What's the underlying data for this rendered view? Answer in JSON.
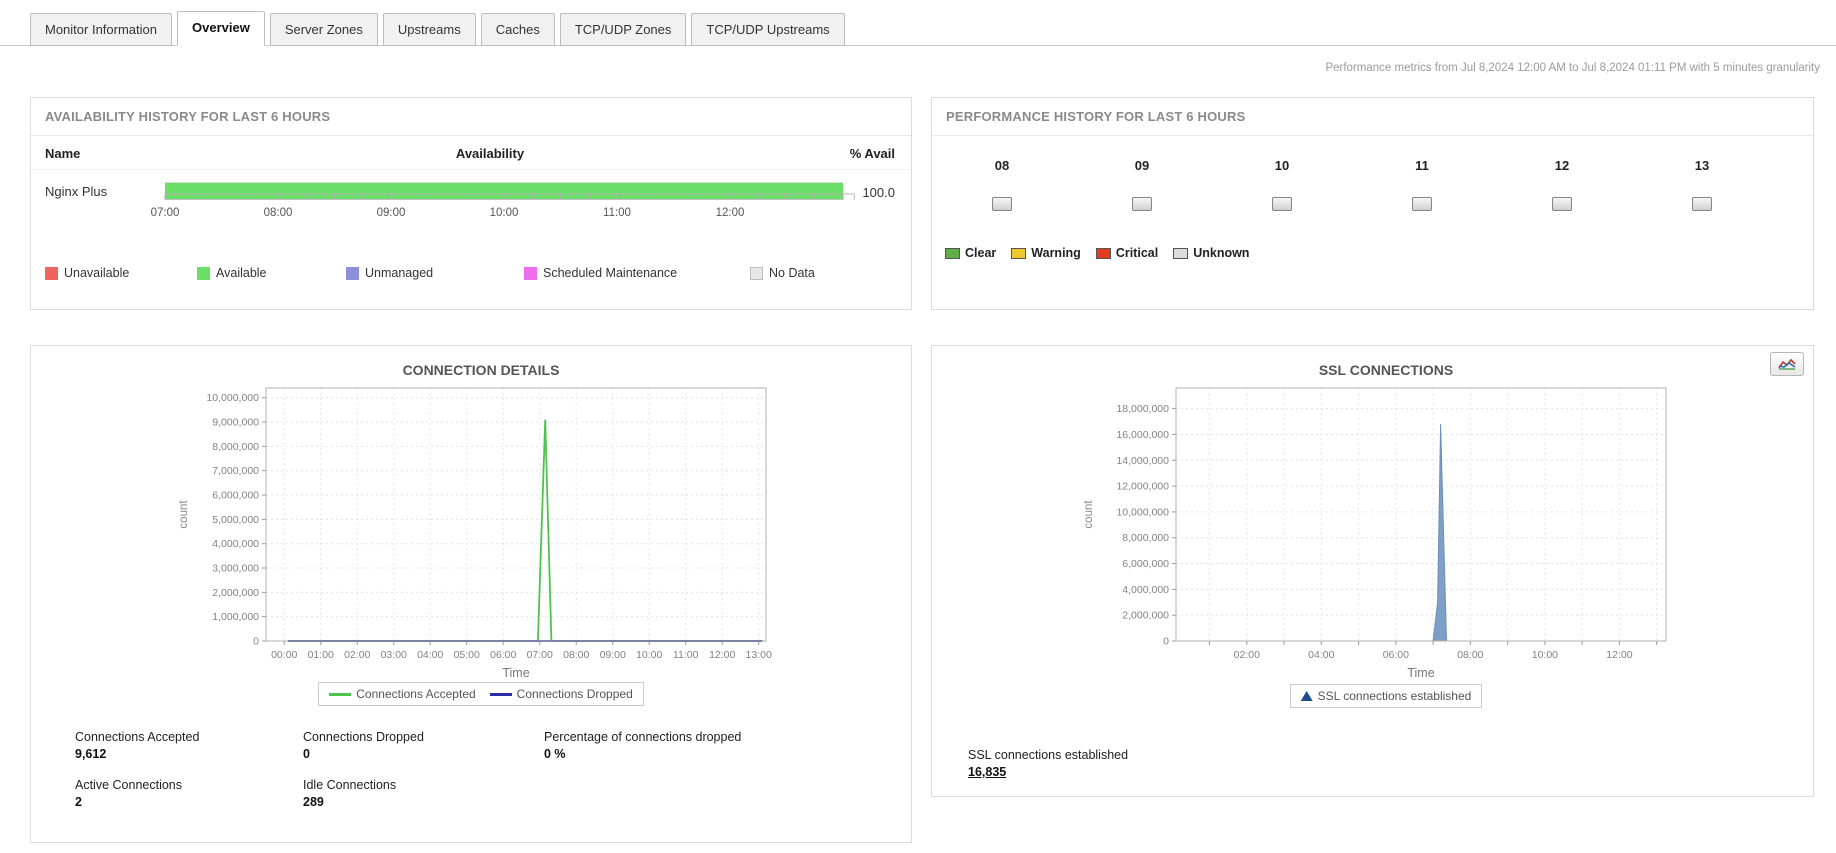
{
  "tabs": {
    "items": [
      {
        "label": "Monitor Information",
        "active": false
      },
      {
        "label": "Overview",
        "active": true
      },
      {
        "label": "Server Zones",
        "active": false
      },
      {
        "label": "Upstreams",
        "active": false
      },
      {
        "label": "Caches",
        "active": false
      },
      {
        "label": "TCP/UDP Zones",
        "active": false
      },
      {
        "label": "TCP/UDP Upstreams",
        "active": false
      }
    ]
  },
  "header": {
    "metrics_note": "Performance metrics from Jul 8,2024 12:00 AM to Jul 8,2024 01:11 PM with 5 minutes granularity"
  },
  "availability": {
    "title": "AVAILABILITY HISTORY FOR LAST 6 HOURS",
    "columns": {
      "name": "Name",
      "availability": "Availability",
      "percent": "% Avail"
    },
    "monitor": {
      "name": "Nginx Plus",
      "percent_avail": "100.0",
      "status": "available",
      "bar_color": "#6ade68"
    },
    "axis": {
      "hour_labels": [
        "07:00",
        "08:00",
        "09:00",
        "10:00",
        "11:00",
        "12:00"
      ],
      "span_hours": 6.1,
      "tick_interval_minutes": 15
    },
    "legend": [
      {
        "label": "Unavailable",
        "color": "#f0645f"
      },
      {
        "label": "Available",
        "color": "#6ade68"
      },
      {
        "label": "Unmanaged",
        "color": "#8f8fd8"
      },
      {
        "label": "Scheduled Maintenance",
        "color": "#ee6fee"
      },
      {
        "label": "No Data",
        "color": "#e7e7e7"
      }
    ]
  },
  "performance": {
    "title": "PERFORMANCE HISTORY FOR LAST 6 HOURS",
    "hours": [
      "08",
      "09",
      "10",
      "11",
      "12",
      "13"
    ],
    "hour_status": [
      "unknown",
      "unknown",
      "unknown",
      "unknown",
      "unknown",
      "unknown"
    ],
    "legend": [
      {
        "label": "Clear",
        "color": "#5fae4a"
      },
      {
        "label": "Warning",
        "color": "#eec62e"
      },
      {
        "label": "Critical",
        "color": "#e23b20"
      },
      {
        "label": "Unknown",
        "color": "#dcdcdc"
      }
    ]
  },
  "connection_details": {
    "stats": [
      {
        "label": "Connections Accepted",
        "value": "9,612"
      },
      {
        "label": "Connections Dropped",
        "value": "0"
      },
      {
        "label": "Percentage of connections dropped",
        "value": "0 %"
      },
      {
        "label": "Active Connections",
        "value": "2"
      },
      {
        "label": "Idle Connections",
        "value": "289"
      }
    ]
  },
  "ssl": {
    "stat": {
      "label": "SSL connections established",
      "value": "16,835"
    }
  },
  "chart_data": [
    {
      "type": "line",
      "title": "CONNECTION DETAILS",
      "xlabel": "Time",
      "ylabel": "count",
      "x_ticks": {
        "labels": [
          "00:00",
          "01:00",
          "02:00",
          "03:00",
          "04:00",
          "05:00",
          "06:00",
          "07:00",
          "08:00",
          "09:00",
          "10:00",
          "11:00",
          "12:00",
          "13:00"
        ],
        "hours": [
          0,
          1,
          2,
          3,
          4,
          5,
          6,
          7,
          8,
          9,
          10,
          11,
          12,
          13
        ]
      },
      "xlim": [
        -0.5,
        13.2
      ],
      "ylim": [
        0,
        10400000
      ],
      "y_ticks": [
        0,
        1000000,
        2000000,
        3000000,
        4000000,
        5000000,
        6000000,
        7000000,
        8000000,
        9000000,
        10000000
      ],
      "grid": true,
      "legend_position": "bottom",
      "series": [
        {
          "name": "Connections Accepted",
          "color": "#4ec34e",
          "draw": "line",
          "points": [
            [
              0.1,
              0
            ],
            [
              6.95,
              0
            ],
            [
              7.15,
              9100000
            ],
            [
              7.32,
              0
            ],
            [
              13.1,
              0
            ]
          ]
        },
        {
          "name": "Connections Dropped",
          "color": "#2d2da8",
          "draw": "line",
          "points": [
            [
              0.1,
              0
            ],
            [
              13.1,
              0
            ]
          ]
        }
      ]
    },
    {
      "type": "area",
      "title": "SSL CONNECTIONS",
      "xlabel": "Time",
      "ylabel": "count",
      "x_ticks": {
        "labels": [
          "02:00",
          "04:00",
          "06:00",
          "08:00",
          "10:00",
          "12:00"
        ],
        "hours": [
          2,
          4,
          6,
          8,
          10,
          12
        ]
      },
      "xlim": [
        0.1,
        13.25
      ],
      "ylim": [
        0,
        19600000
      ],
      "y_ticks": [
        0,
        2000000,
        4000000,
        6000000,
        8000000,
        10000000,
        12000000,
        14000000,
        16000000,
        18000000
      ],
      "grid": true,
      "legend_position": "bottom",
      "series": [
        {
          "name": "SSL connections established",
          "color": "#7e9fc6",
          "line_color": "#6b8fb8",
          "marker_color": "#1f4e8f",
          "draw": "area",
          "points": [
            [
              0.1,
              0
            ],
            [
              7.0,
              0
            ],
            [
              7.12,
              3000000
            ],
            [
              7.2,
              16800000
            ],
            [
              7.36,
              0
            ],
            [
              13.25,
              0
            ]
          ]
        }
      ]
    }
  ]
}
